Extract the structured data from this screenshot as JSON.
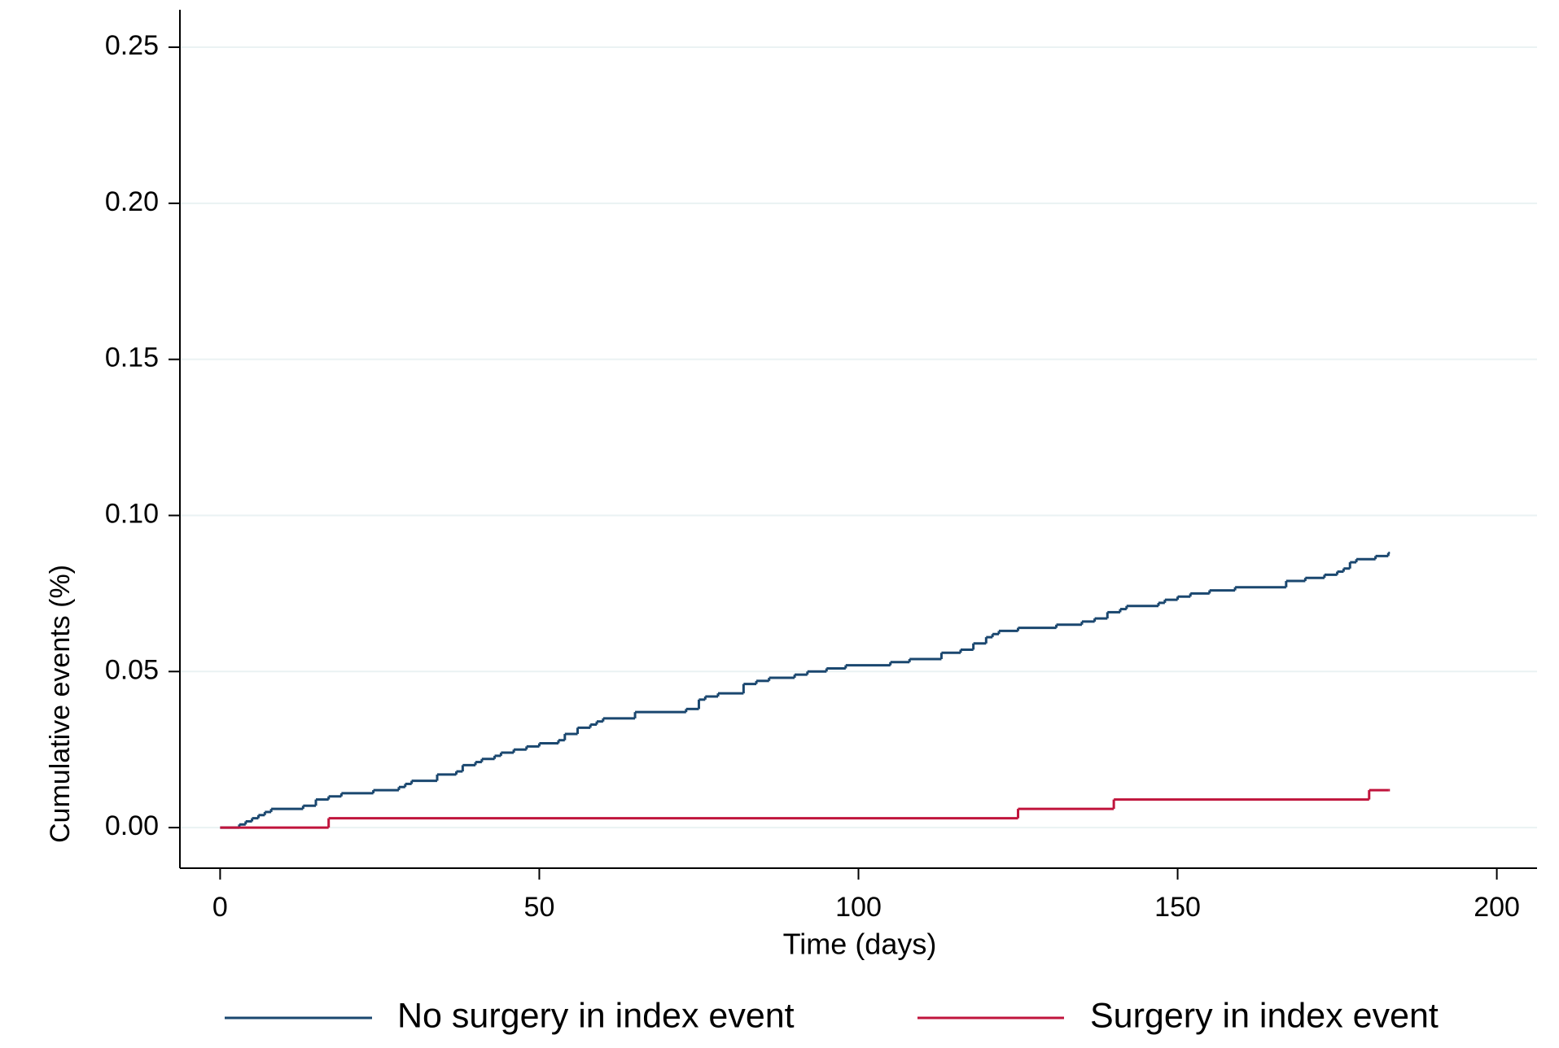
{
  "chart_data": {
    "type": "line",
    "step": "post",
    "x_label": "Time (days)",
    "y_label": "Cumulative events (%)",
    "xlim": [
      -6.3,
      206.3
    ],
    "ylim": [
      -0.013,
      0.262
    ],
    "xticks": [
      0,
      50,
      100,
      150,
      200
    ],
    "yticks": [
      {
        "value": 0,
        "label": "0.00"
      },
      0.05,
      {
        "value": 0.1,
        "label": "0.10"
      },
      0.15,
      {
        "value": 0.2,
        "label": "0.20"
      },
      0.25
    ],
    "grid": true,
    "legend": "bottom",
    "series": [
      {
        "name": "No surgery in index event",
        "color": "#1a476f",
        "x": [
          0,
          3,
          4,
          5,
          6,
          7,
          8,
          13,
          15,
          17,
          19,
          24,
          28,
          29,
          30,
          34,
          37,
          38,
          40,
          41,
          43,
          44,
          46,
          48,
          50,
          53,
          54,
          56,
          58,
          59,
          60,
          65,
          73,
          75,
          76,
          78,
          82,
          84,
          86,
          90,
          92,
          95,
          98,
          105,
          108,
          113,
          116,
          118,
          120,
          121,
          122,
          125,
          131,
          135,
          137,
          139,
          141,
          142,
          147,
          148,
          150,
          152,
          155,
          159,
          167,
          170,
          173,
          175,
          176,
          177,
          178,
          181,
          183
        ],
        "values": [
          0,
          0.001,
          0.002,
          0.003,
          0.004,
          0.005,
          0.006,
          0.007,
          0.009,
          0.01,
          0.011,
          0.012,
          0.013,
          0.014,
          0.015,
          0.017,
          0.018,
          0.02,
          0.021,
          0.022,
          0.023,
          0.024,
          0.025,
          0.026,
          0.027,
          0.028,
          0.03,
          0.032,
          0.033,
          0.034,
          0.035,
          0.037,
          0.038,
          0.041,
          0.042,
          0.043,
          0.046,
          0.047,
          0.048,
          0.049,
          0.05,
          0.051,
          0.052,
          0.053,
          0.054,
          0.056,
          0.057,
          0.059,
          0.061,
          0.062,
          0.063,
          0.064,
          0.065,
          0.066,
          0.067,
          0.069,
          0.07,
          0.071,
          0.072,
          0.073,
          0.074,
          0.075,
          0.076,
          0.077,
          0.079,
          0.08,
          0.081,
          0.082,
          0.083,
          0.085,
          0.086,
          0.087,
          0.088
        ]
      },
      {
        "name": "Surgery in index event",
        "color": "#c0143c",
        "x": [
          0,
          17,
          125,
          140,
          180,
          183
        ],
        "values": [
          0,
          0.003,
          0.006,
          0.009,
          0.012,
          0.012
        ]
      }
    ]
  }
}
